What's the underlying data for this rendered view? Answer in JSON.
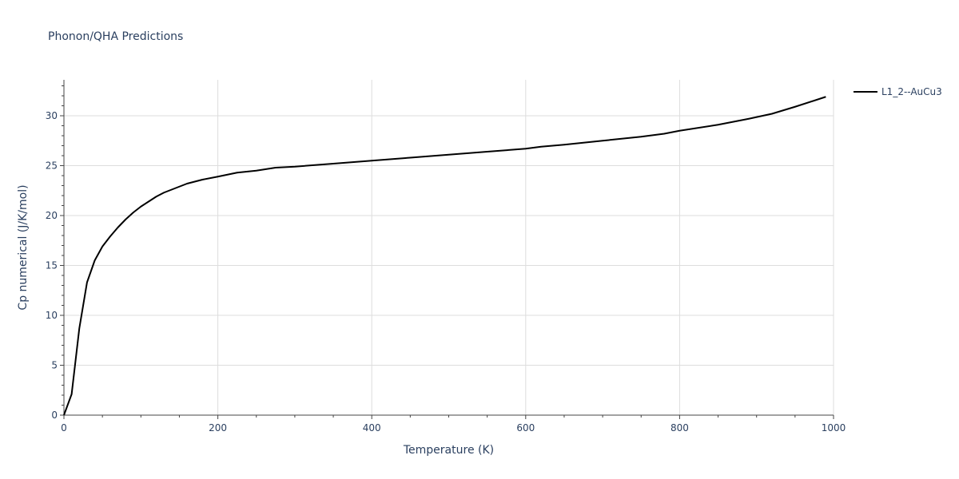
{
  "chart_data": {
    "type": "line",
    "title": "Phonon/QHA Predictions",
    "xlabel": "Temperature (K)",
    "ylabel": "Cp numerical (J/K/mol)",
    "xlim": [
      0,
      1000
    ],
    "ylim": [
      0,
      33.6
    ],
    "x_ticks": [
      0,
      200,
      400,
      600,
      800,
      1000
    ],
    "y_ticks": [
      0,
      5,
      10,
      15,
      20,
      25,
      30
    ],
    "x_tick_labels": [
      "0",
      "200",
      "400",
      "600",
      "800",
      "1000"
    ],
    "y_tick_labels": [
      "0",
      "5",
      "10",
      "15",
      "20",
      "25",
      "30"
    ],
    "grid": true,
    "legend_position": "top-right",
    "series": [
      {
        "name": "L1_2--AuCu3",
        "color": "#000000",
        "x": [
          0,
          10,
          20,
          30,
          40,
          50,
          60,
          70,
          80,
          90,
          100,
          110,
          120,
          130,
          140,
          150,
          160,
          180,
          200,
          225,
          250,
          275,
          300,
          350,
          400,
          450,
          500,
          550,
          600,
          620,
          650,
          700,
          750,
          780,
          800,
          850,
          890,
          920,
          950,
          990
        ],
        "y": [
          0,
          2.1,
          8.7,
          13.3,
          15.5,
          16.9,
          17.9,
          18.8,
          19.6,
          20.3,
          20.9,
          21.4,
          21.9,
          22.3,
          22.6,
          22.9,
          23.2,
          23.6,
          23.9,
          24.3,
          24.5,
          24.8,
          24.9,
          25.2,
          25.5,
          25.8,
          26.1,
          26.4,
          26.7,
          26.9,
          27.1,
          27.5,
          27.9,
          28.2,
          28.5,
          29.1,
          29.7,
          30.2,
          30.9,
          31.9
        ]
      }
    ]
  }
}
